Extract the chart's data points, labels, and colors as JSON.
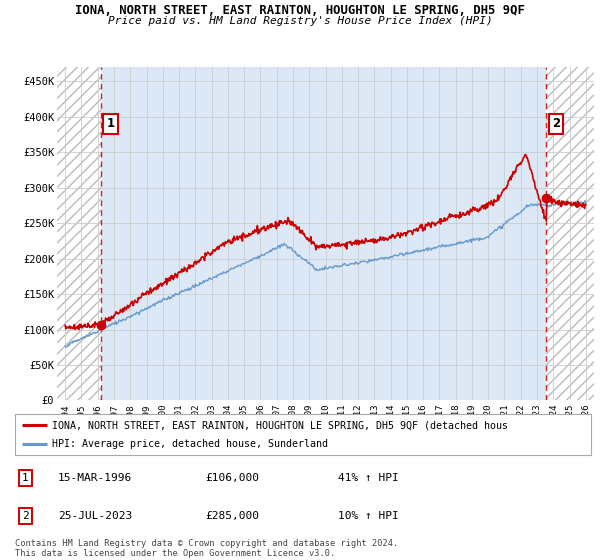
{
  "title": "IONA, NORTH STREET, EAST RAINTON, HOUGHTON LE SPRING, DH5 9QF",
  "subtitle": "Price paid vs. HM Land Registry's House Price Index (HPI)",
  "xlim_years": [
    1993.5,
    2026.5
  ],
  "ylim": [
    0,
    470000
  ],
  "yticks": [
    0,
    50000,
    100000,
    150000,
    200000,
    250000,
    300000,
    350000,
    400000,
    450000
  ],
  "ytick_labels": [
    "£0",
    "£50K",
    "£100K",
    "£150K",
    "£200K",
    "£250K",
    "£300K",
    "£350K",
    "£400K",
    "£450K"
  ],
  "xtick_years": [
    1994,
    1995,
    1996,
    1997,
    1998,
    1999,
    2000,
    2001,
    2002,
    2003,
    2004,
    2005,
    2006,
    2007,
    2008,
    2009,
    2010,
    2011,
    2012,
    2013,
    2014,
    2015,
    2016,
    2017,
    2018,
    2019,
    2020,
    2021,
    2022,
    2023,
    2024,
    2025,
    2026
  ],
  "sale1_year": 1996.21,
  "sale1_price": 106000,
  "sale1_label": "1",
  "sale2_year": 2023.56,
  "sale2_price": 285000,
  "sale2_label": "2",
  "red_line_color": "#cc0000",
  "blue_line_color": "#6699cc",
  "grid_color": "#cccccc",
  "hatch_color": "#bbbbbb",
  "bg_color": "#dce8f5",
  "legend_line1": "IONA, NORTH STREET, EAST RAINTON, HOUGHTON LE SPRING, DH5 9QF (detached hous",
  "legend_line2": "HPI: Average price, detached house, Sunderland",
  "table_row1_num": "1",
  "table_row1_date": "15-MAR-1996",
  "table_row1_price": "£106,000",
  "table_row1_hpi": "41% ↑ HPI",
  "table_row2_num": "2",
  "table_row2_date": "25-JUL-2023",
  "table_row2_price": "£285,000",
  "table_row2_hpi": "10% ↑ HPI",
  "footer": "Contains HM Land Registry data © Crown copyright and database right 2024.\nThis data is licensed under the Open Government Licence v3.0."
}
